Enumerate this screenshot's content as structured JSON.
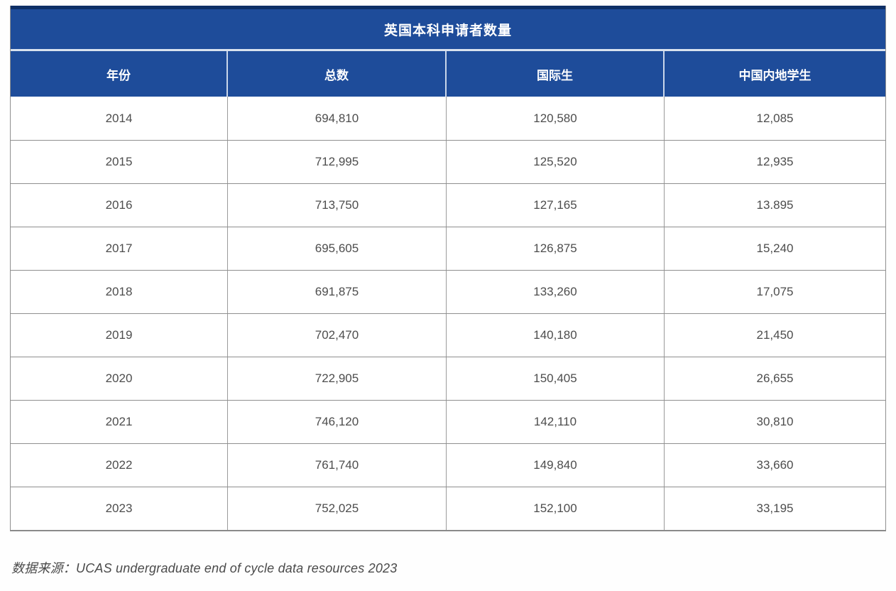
{
  "colors": {
    "header_blue": "#1e4c9a",
    "header_top_border": "#0d2f66",
    "header_separator": "#c9d6ea",
    "grid_line": "#8f8f8f",
    "header_text": "#ffffff",
    "body_text": "#4d4d4d"
  },
  "table": {
    "title": "英国本科申请者数量",
    "columns": [
      "年份",
      "总数",
      "国际生",
      "中国内地学生"
    ],
    "rows": [
      [
        "2014",
        "694,810",
        "120,580",
        "12,085"
      ],
      [
        "2015",
        "712,995",
        "125,520",
        "12,935"
      ],
      [
        "2016",
        "713,750",
        "127,165",
        "13.895"
      ],
      [
        "2017",
        "695,605",
        "126,875",
        "15,240"
      ],
      [
        "2018",
        "691,875",
        "133,260",
        "17,075"
      ],
      [
        "2019",
        "702,470",
        "140,180",
        "21,450"
      ],
      [
        "2020",
        "722,905",
        "150,405",
        "26,655"
      ],
      [
        "2021",
        "746,120",
        "142,110",
        "30,810"
      ],
      [
        "2022",
        "761,740",
        "149,840",
        "33,660"
      ],
      [
        "2023",
        "752,025",
        "152,100",
        "33,195"
      ]
    ]
  },
  "source_note": "数据来源：UCAS undergraduate end of cycle data resources 2023",
  "chart_data": {
    "type": "table",
    "title": "英国本科申请者数量",
    "columns": [
      "年份",
      "总数",
      "国际生",
      "中国内地学生"
    ],
    "rows": [
      [
        "2014",
        "694,810",
        "120,580",
        "12,085"
      ],
      [
        "2015",
        "712,995",
        "125,520",
        "12,935"
      ],
      [
        "2016",
        "713,750",
        "127,165",
        "13.895"
      ],
      [
        "2017",
        "695,605",
        "126,875",
        "15,240"
      ],
      [
        "2018",
        "691,875",
        "133,260",
        "17,075"
      ],
      [
        "2019",
        "702,470",
        "140,180",
        "21,450"
      ],
      [
        "2020",
        "722,905",
        "150,405",
        "26,655"
      ],
      [
        "2021",
        "746,120",
        "142,110",
        "30,810"
      ],
      [
        "2022",
        "761,740",
        "149,840",
        "33,660"
      ],
      [
        "2023",
        "752,025",
        "152,100",
        "33,195"
      ]
    ],
    "series": [
      {
        "name": "年份",
        "values": [
          2014,
          2015,
          2016,
          2017,
          2018,
          2019,
          2020,
          2021,
          2022,
          2023
        ]
      },
      {
        "name": "总数",
        "values": [
          694810,
          712995,
          713750,
          695605,
          691875,
          702470,
          722905,
          746120,
          761740,
          752025
        ]
      },
      {
        "name": "国际生",
        "values": [
          120580,
          125520,
          127165,
          126875,
          133260,
          140180,
          150405,
          142110,
          149840,
          152100
        ]
      },
      {
        "name": "中国内地学生",
        "values": [
          12085,
          12935,
          13895,
          15240,
          17075,
          21450,
          26655,
          30810,
          33660,
          33195
        ]
      }
    ],
    "source": "数据来源：UCAS undergraduate end of cycle data resources 2023"
  }
}
